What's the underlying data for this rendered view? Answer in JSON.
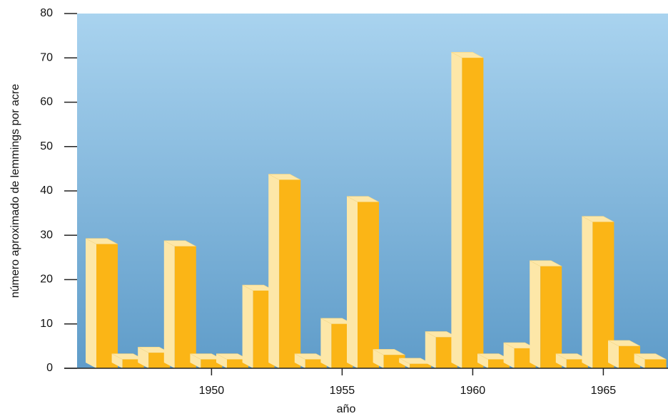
{
  "chart_data": {
    "type": "bar3d",
    "y_label": "número aproximado de lemmings por acre",
    "x_label": "año",
    "categories": [
      null,
      null,
      null,
      null,
      "1950",
      null,
      null,
      null,
      null,
      "1955",
      null,
      null,
      null,
      null,
      "1960",
      null,
      null,
      null,
      null,
      "1965",
      null,
      null
    ],
    "values": [
      28,
      2,
      3.5,
      27.5,
      2,
      2,
      17.5,
      42.5,
      2,
      10,
      37.5,
      3,
      1,
      7,
      70,
      2,
      4.5,
      23,
      2,
      33,
      5,
      2
    ],
    "color": "#fbb516",
    "side_color": "#fde7a8",
    "ylim": [
      0,
      80
    ],
    "yticks": [
      0,
      10,
      20,
      30,
      40,
      50,
      60,
      70,
      80
    ]
  }
}
